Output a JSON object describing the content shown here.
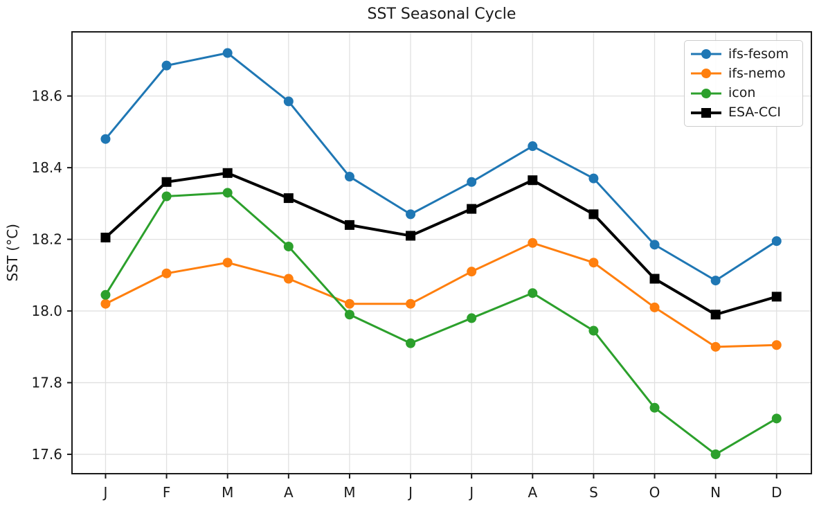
{
  "chart_data": {
    "type": "line",
    "title": "SST Seasonal Cycle",
    "xlabel": "",
    "ylabel": "SST (°C)",
    "categories": [
      "J",
      "F",
      "M",
      "A",
      "M",
      "J",
      "J",
      "A",
      "S",
      "O",
      "N",
      "D"
    ],
    "y_ticks": [
      17.6,
      17.8,
      18.0,
      18.2,
      18.4,
      18.6
    ],
    "y_tick_labels": [
      "17.6",
      "17.8",
      "18.0",
      "18.2",
      "18.4",
      "18.6"
    ],
    "xlim": [
      -0.55,
      11.57
    ],
    "ylim": [
      17.546,
      18.779
    ],
    "grid": true,
    "legend_position": "upper right",
    "series": [
      {
        "name": "ifs-fesom",
        "color": "#1f77b4",
        "marker": "circle",
        "line_width": 3,
        "values": [
          18.48,
          18.685,
          18.72,
          18.585,
          18.375,
          18.27,
          18.36,
          18.46,
          18.37,
          18.185,
          18.085,
          18.195
        ]
      },
      {
        "name": "ifs-nemo",
        "color": "#ff7f0e",
        "marker": "circle",
        "line_width": 3,
        "values": [
          18.02,
          18.105,
          18.135,
          18.09,
          18.02,
          18.02,
          18.11,
          18.19,
          18.135,
          18.01,
          17.9,
          17.905
        ]
      },
      {
        "name": "icon",
        "color": "#2ca02c",
        "marker": "circle",
        "line_width": 3,
        "values": [
          18.045,
          18.32,
          18.33,
          18.18,
          17.99,
          17.91,
          17.98,
          18.05,
          17.945,
          17.73,
          17.6,
          17.7
        ]
      },
      {
        "name": "ESA-CCI",
        "color": "#000000",
        "marker": "square",
        "line_width": 4,
        "values": [
          18.205,
          18.36,
          18.385,
          18.315,
          18.24,
          18.21,
          18.285,
          18.365,
          18.27,
          18.09,
          17.99,
          18.04
        ]
      }
    ]
  }
}
